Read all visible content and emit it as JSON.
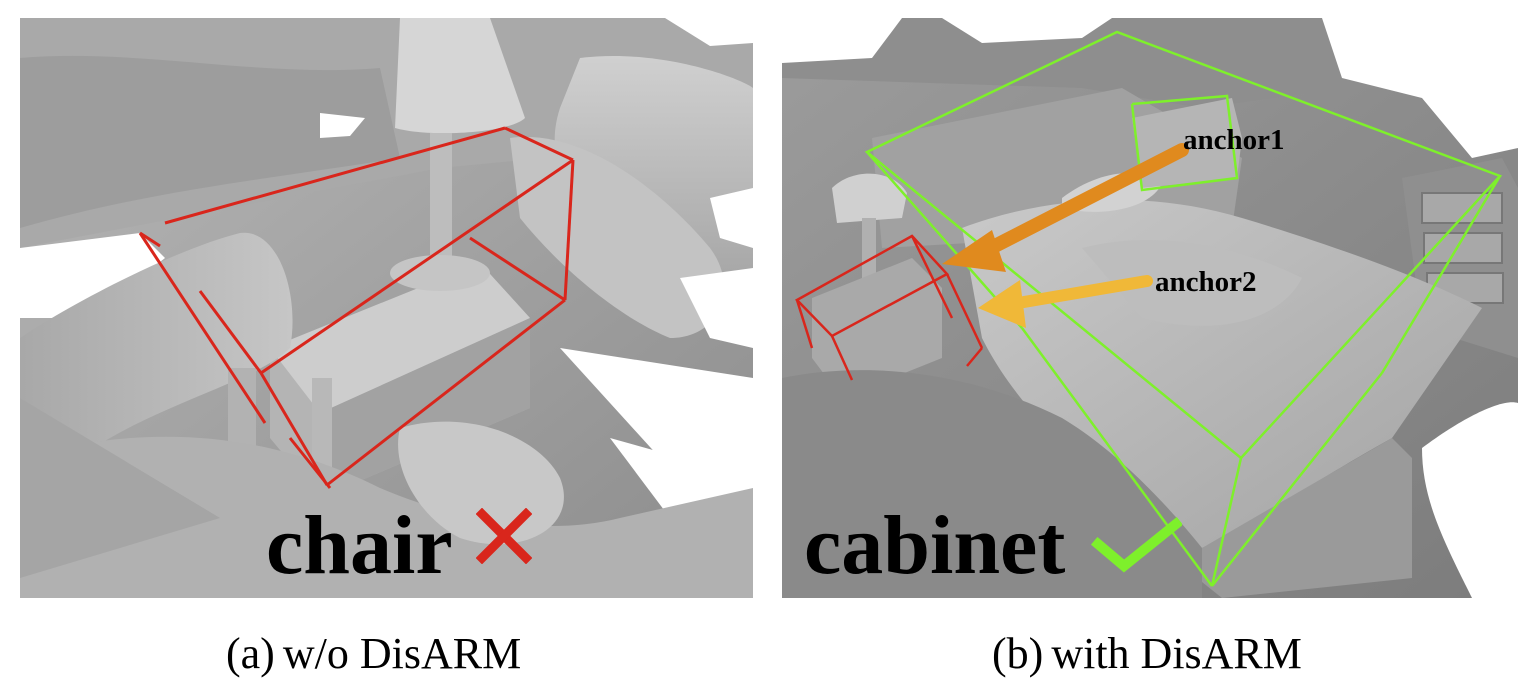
{
  "panels": [
    {
      "caption_tag": "(a)",
      "caption_text": "w/o DisARM",
      "predicted_label": "chair",
      "result_icon": "cross-icon",
      "result_color": "#d9261c",
      "box_color": "#d9261c"
    },
    {
      "caption_tag": "(b)",
      "caption_text": "with DisARM",
      "predicted_label": "cabinet",
      "result_icon": "check-icon",
      "result_color": "#7ef02b",
      "box_color": "#d9261c",
      "anchor_box_color": "#7ef02b",
      "anchors": [
        {
          "label": "anchor1",
          "arrow_color": "#e08a1e"
        },
        {
          "label": "anchor2",
          "arrow_color": "#f0b838"
        }
      ]
    }
  ]
}
